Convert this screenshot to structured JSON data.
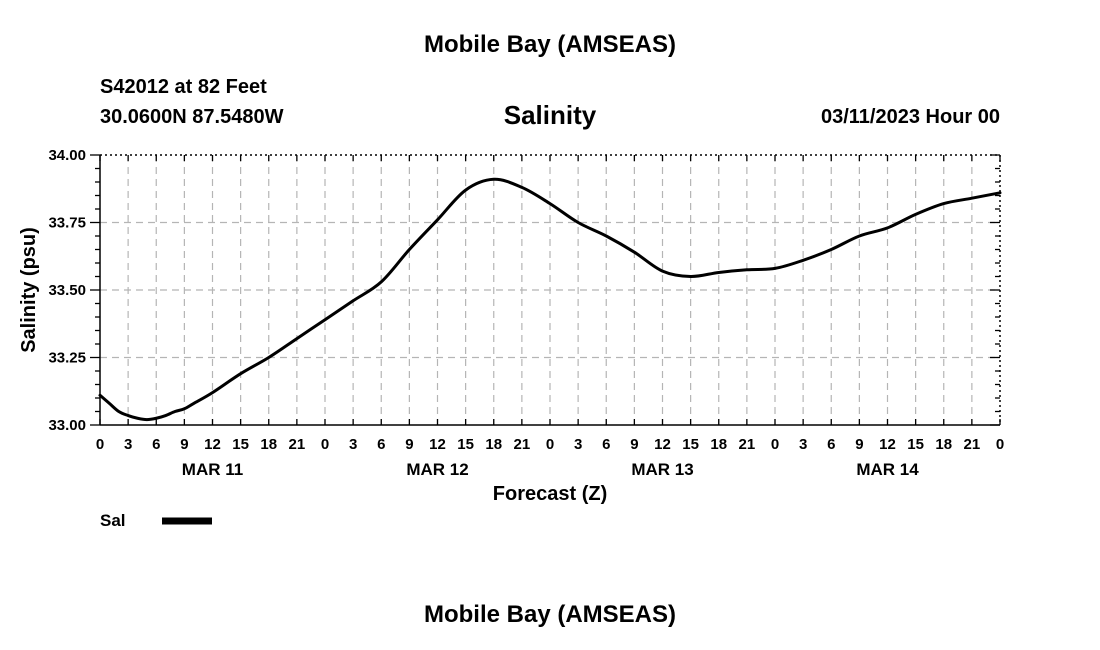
{
  "header": {
    "title": "Mobile Bay (AMSEAS)",
    "station": "S42012 at 82 Feet",
    "coords": "30.0600N  87.5480W",
    "run_date": "03/11/2023 Hour 00",
    "footer_title": "Mobile Bay (AMSEAS)"
  },
  "chart_data": {
    "type": "line",
    "title": "Salinity",
    "xlabel": "Forecast (Z)",
    "ylabel": "Salinity (psu)",
    "ylim": [
      33.0,
      34.0
    ],
    "yticks": [
      "33.00",
      "33.25",
      "33.50",
      "33.75",
      "34.00"
    ],
    "xlim": [
      0,
      96
    ],
    "x_tick_step_hours": 3,
    "x_tick_labels": [
      "0",
      "3",
      "6",
      "9",
      "12",
      "15",
      "18",
      "21",
      "0",
      "3",
      "6",
      "9",
      "12",
      "15",
      "18",
      "21",
      "0",
      "3",
      "6",
      "9",
      "12",
      "15",
      "18",
      "21",
      "0",
      "3",
      "6",
      "9",
      "12",
      "15",
      "18",
      "21",
      "0"
    ],
    "day_labels": [
      "MAR 11",
      "MAR 12",
      "MAR 13",
      "MAR 14"
    ],
    "grid": true,
    "legend": "bottom-left",
    "series": [
      {
        "name": "Sal",
        "color": "#000000",
        "x": [
          0,
          1,
          2,
          3,
          4,
          5,
          6,
          7,
          8,
          9,
          10,
          12,
          15,
          18,
          21,
          24,
          27,
          30,
          33,
          36,
          39,
          42,
          45,
          48,
          51,
          54,
          57,
          60,
          63,
          66,
          69,
          72,
          75,
          78,
          81,
          84,
          87,
          90,
          93,
          96
        ],
        "values": [
          33.11,
          33.08,
          33.05,
          33.035,
          33.025,
          33.02,
          33.025,
          33.035,
          33.05,
          33.06,
          33.08,
          33.12,
          33.19,
          33.25,
          33.32,
          33.39,
          33.46,
          33.53,
          33.65,
          33.76,
          33.87,
          33.91,
          33.88,
          33.82,
          33.75,
          33.7,
          33.64,
          33.57,
          33.55,
          33.565,
          33.575,
          33.58,
          33.61,
          33.65,
          33.7,
          33.73,
          33.78,
          33.82,
          33.84,
          33.86
        ]
      }
    ]
  }
}
